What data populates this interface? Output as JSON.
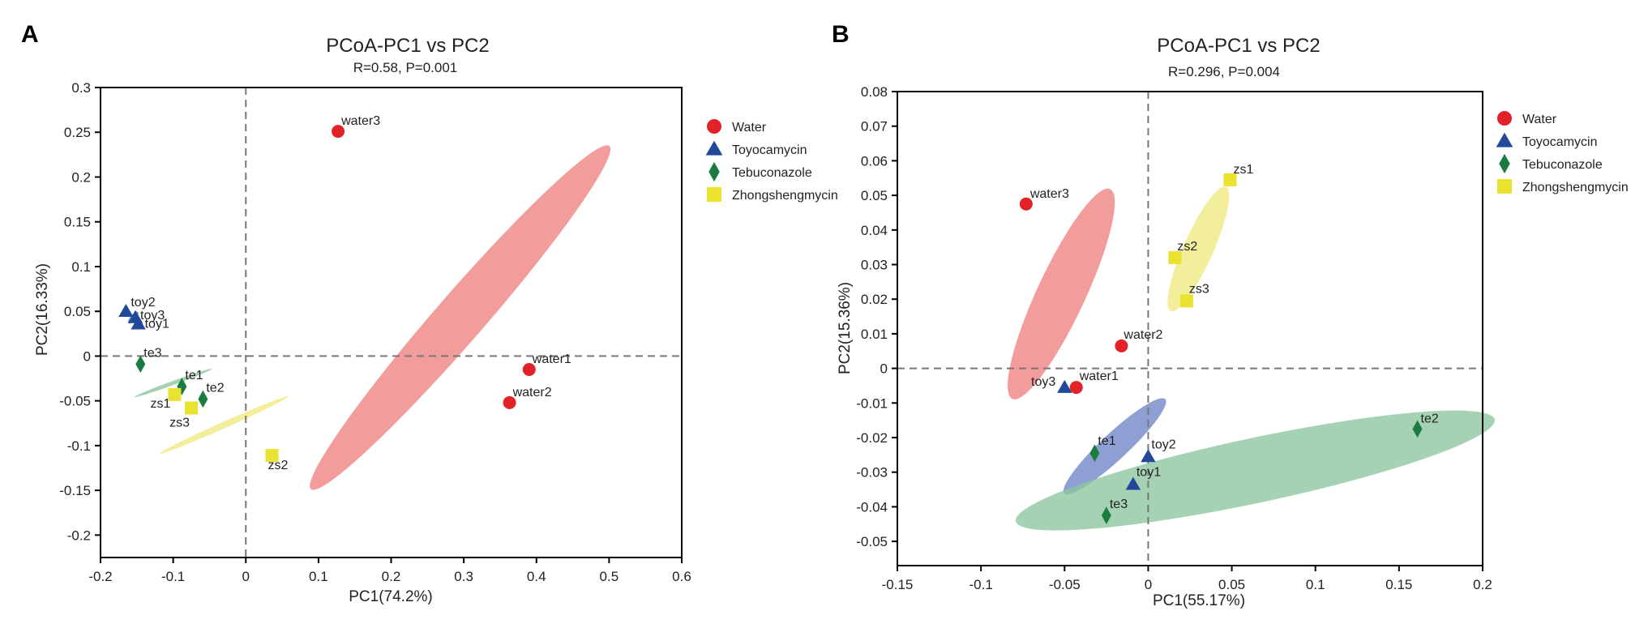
{
  "chart_data": [
    {
      "panel": "A",
      "type": "scatter",
      "title": "PCoA-PC1 vs PC2",
      "subtitle": "R=0.58, P=0.001",
      "xlabel": "PC1(74.2%)",
      "ylabel": "PC2(16.33%)",
      "xlim": [
        -0.2,
        0.6
      ],
      "ylim": [
        -0.225,
        0.3
      ],
      "xticks": [
        -0.2,
        -0.1,
        0,
        0.1,
        0.2,
        0.3,
        0.4,
        0.5,
        0.6
      ],
      "xtick_labels": [
        "-0.2",
        "-0.1",
        "0",
        "0.1",
        "0.2",
        "0.3",
        "0.4",
        "0.5",
        "0.6"
      ],
      "yticks": [
        -0.2,
        -0.15,
        -0.1,
        -0.05,
        0,
        0.05,
        0.1,
        0.15,
        0.2,
        0.25,
        0.3
      ],
      "ytick_labels": [
        "-0.2",
        "-0.15",
        "-0.1",
        "-0.05",
        "0",
        "0.05",
        "0.1",
        "0.15",
        "0.2",
        "0.25",
        "0.3"
      ],
      "legend_position": "outside-right-top",
      "series": [
        {
          "name": "Water",
          "marker": "circle",
          "color": "#e32227",
          "points": [
            {
              "label": "water1",
              "x": 0.39,
              "y": -0.015
            },
            {
              "label": "water2",
              "x": 0.363,
              "y": -0.052
            },
            {
              "label": "water3",
              "x": 0.127,
              "y": 0.251
            }
          ]
        },
        {
          "name": "Toyocamycin",
          "marker": "triangle",
          "color": "#21489b",
          "points": [
            {
              "label": "toy1",
              "x": -0.148,
              "y": 0.036
            },
            {
              "label": "toy2",
              "x": -0.165,
              "y": 0.05
            },
            {
              "label": "toy3",
              "x": -0.152,
              "y": 0.043
            }
          ]
        },
        {
          "name": "Tebuconazole",
          "marker": "diamond",
          "color": "#1b7c3f",
          "points": [
            {
              "label": "te1",
              "x": -0.088,
              "y": -0.034
            },
            {
              "label": "te2",
              "x": -0.059,
              "y": -0.048
            },
            {
              "label": "te3",
              "x": -0.145,
              "y": -0.009
            }
          ]
        },
        {
          "name": "Zhongshengmycin",
          "marker": "square",
          "color": "#e9e22f",
          "points": [
            {
              "label": "zs1",
              "x": -0.098,
              "y": -0.043
            },
            {
              "label": "zs2",
              "x": 0.036,
              "y": -0.111
            },
            {
              "label": "zs3",
              "x": -0.075,
              "y": -0.058
            }
          ]
        }
      ],
      "ellipses": [
        {
          "group": "Water",
          "cx": 0.295,
          "cy": 0.043,
          "semi_major": 0.275,
          "semi_minor": 0.03,
          "rotation_deg": 49,
          "color": "#f08080"
        },
        {
          "group": "Toyocamycin",
          "cx": -0.155,
          "cy": 0.043,
          "semi_major": 0.009,
          "semi_minor": 0.0035,
          "rotation_deg": 50,
          "color": "#6e84c6"
        },
        {
          "group": "Tebuconazole",
          "cx": -0.1,
          "cy": -0.03,
          "semi_major": 0.055,
          "semi_minor": 0.0025,
          "rotation_deg": 20,
          "color": "#8cc59c"
        },
        {
          "group": "Zhongshengmycin",
          "cx": -0.03,
          "cy": -0.077,
          "semi_major": 0.093,
          "semi_minor": 0.004,
          "rotation_deg": 24,
          "color": "#eee980"
        }
      ]
    },
    {
      "panel": "B",
      "type": "scatter",
      "title": "PCoA-PC1 vs PC2",
      "subtitle": "R=0.296, P=0.004",
      "xlabel": "PC1(55.17%)",
      "ylabel": "PC2(15.36%)",
      "xlim": [
        -0.15,
        0.2
      ],
      "ylim": [
        -0.057,
        0.08
      ],
      "xticks": [
        -0.15,
        -0.1,
        -0.05,
        0,
        0.05,
        0.1,
        0.15,
        0.2
      ],
      "xtick_labels": [
        "-0.15",
        "-0.1",
        "-0.05",
        "0",
        "0.05",
        "0.1",
        "0.15",
        "0.2"
      ],
      "yticks": [
        -0.05,
        -0.04,
        -0.03,
        -0.02,
        -0.01,
        0,
        0.01,
        0.02,
        0.03,
        0.04,
        0.05,
        0.06,
        0.07,
        0.08
      ],
      "ytick_labels": [
        "-0.05",
        "-0.04",
        "-0.03",
        "-0.02",
        "-0.01",
        "0",
        "0.01",
        "0.02",
        "0.03",
        "0.04",
        "0.05",
        "0.06",
        "0.07",
        "0.08"
      ],
      "legend_position": "outside-right-top",
      "series": [
        {
          "name": "Water",
          "marker": "circle",
          "color": "#e32227",
          "points": [
            {
              "label": "water1",
              "x": -0.043,
              "y": -0.0055
            },
            {
              "label": "water2",
              "x": -0.016,
              "y": 0.0065
            },
            {
              "label": "water3",
              "x": -0.073,
              "y": 0.0475
            }
          ]
        },
        {
          "name": "Toyocamycin",
          "marker": "triangle",
          "color": "#21489b",
          "points": [
            {
              "label": "toy1",
              "x": -0.009,
              "y": -0.0335
            },
            {
              "label": "toy2",
              "x": 0,
              "y": -0.0255
            },
            {
              "label": "toy3",
              "x": -0.05,
              "y": -0.0055
            }
          ]
        },
        {
          "name": "Tebuconazole",
          "marker": "diamond",
          "color": "#1b7c3f",
          "points": [
            {
              "label": "te1",
              "x": -0.032,
              "y": -0.0245
            },
            {
              "label": "te2",
              "x": 0.161,
              "y": -0.0175
            },
            {
              "label": "te3",
              "x": -0.025,
              "y": -0.0425
            }
          ]
        },
        {
          "name": "Zhongshengmycin",
          "marker": "square",
          "color": "#e9e22f",
          "points": [
            {
              "label": "zs1",
              "x": 0.049,
              "y": 0.0545
            },
            {
              "label": "zs2",
              "x": 0.016,
              "y": 0.032
            },
            {
              "label": "zs3",
              "x": 0.023,
              "y": 0.0195
            }
          ]
        }
      ],
      "ellipses": [
        {
          "group": "Water",
          "cx": -0.052,
          "cy": 0.0215,
          "semi_major": 0.036,
          "semi_minor": 0.01,
          "rotation_deg": 65,
          "color": "#f08080"
        },
        {
          "group": "Toyocamycin",
          "cx": -0.02,
          "cy": -0.0225,
          "semi_major": 0.026,
          "semi_minor": 0.0055,
          "rotation_deg": 43,
          "color": "#6e84c6"
        },
        {
          "group": "Tebuconazole",
          "cx": 0.064,
          "cy": -0.0295,
          "semi_major": 0.137,
          "semi_minor": 0.0135,
          "rotation_deg": 12,
          "color": "#8cc59c"
        },
        {
          "group": "Zhongshengmycin",
          "cx": 0.03,
          "cy": 0.0345,
          "semi_major": 0.021,
          "semi_minor": 0.0062,
          "rotation_deg": 66,
          "color": "#eee980"
        }
      ]
    }
  ]
}
